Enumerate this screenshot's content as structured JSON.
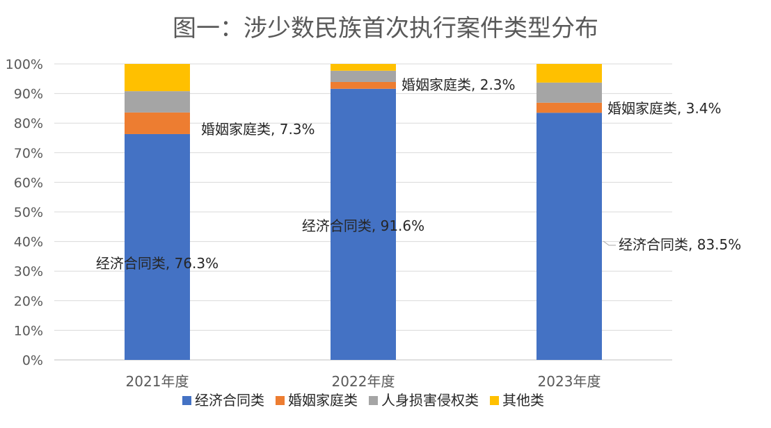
{
  "chart_data": {
    "type": "bar",
    "stacked": true,
    "percent_stacked": true,
    "title": "图一：涉少数民族首次执行案件类型分布",
    "categories": [
      "2021年度",
      "2022年度",
      "2023年度"
    ],
    "ylim": [
      0,
      100
    ],
    "y_ticks": [
      "0%",
      "10%",
      "20%",
      "30%",
      "40%",
      "50%",
      "60%",
      "70%",
      "80%",
      "90%",
      "100%"
    ],
    "grid": true,
    "legend_position": "bottom",
    "series": [
      {
        "name": "经济合同类",
        "color": "#4472C4",
        "values": [
          76.3,
          91.6,
          83.5
        ]
      },
      {
        "name": "婚姻家庭类",
        "color": "#ED7D31",
        "values": [
          7.3,
          2.3,
          3.4
        ]
      },
      {
        "name": "人身损害侵权类",
        "color": "#A5A5A5",
        "values": [
          7.2,
          3.8,
          6.8
        ]
      },
      {
        "name": "其他类",
        "color": "#FFC000",
        "values": [
          9.2,
          2.3,
          6.3
        ]
      }
    ],
    "data_labels": [
      {
        "text": "经济合同类, 76.3%"
      },
      {
        "text": "婚姻家庭类, 7.3%"
      },
      {
        "text": "经济合同类, 91.6%"
      },
      {
        "text": "婚姻家庭类, 2.3%"
      },
      {
        "text": "经济合同类, 83.5%"
      },
      {
        "text": "婚姻家庭类, 3.4%"
      }
    ]
  }
}
